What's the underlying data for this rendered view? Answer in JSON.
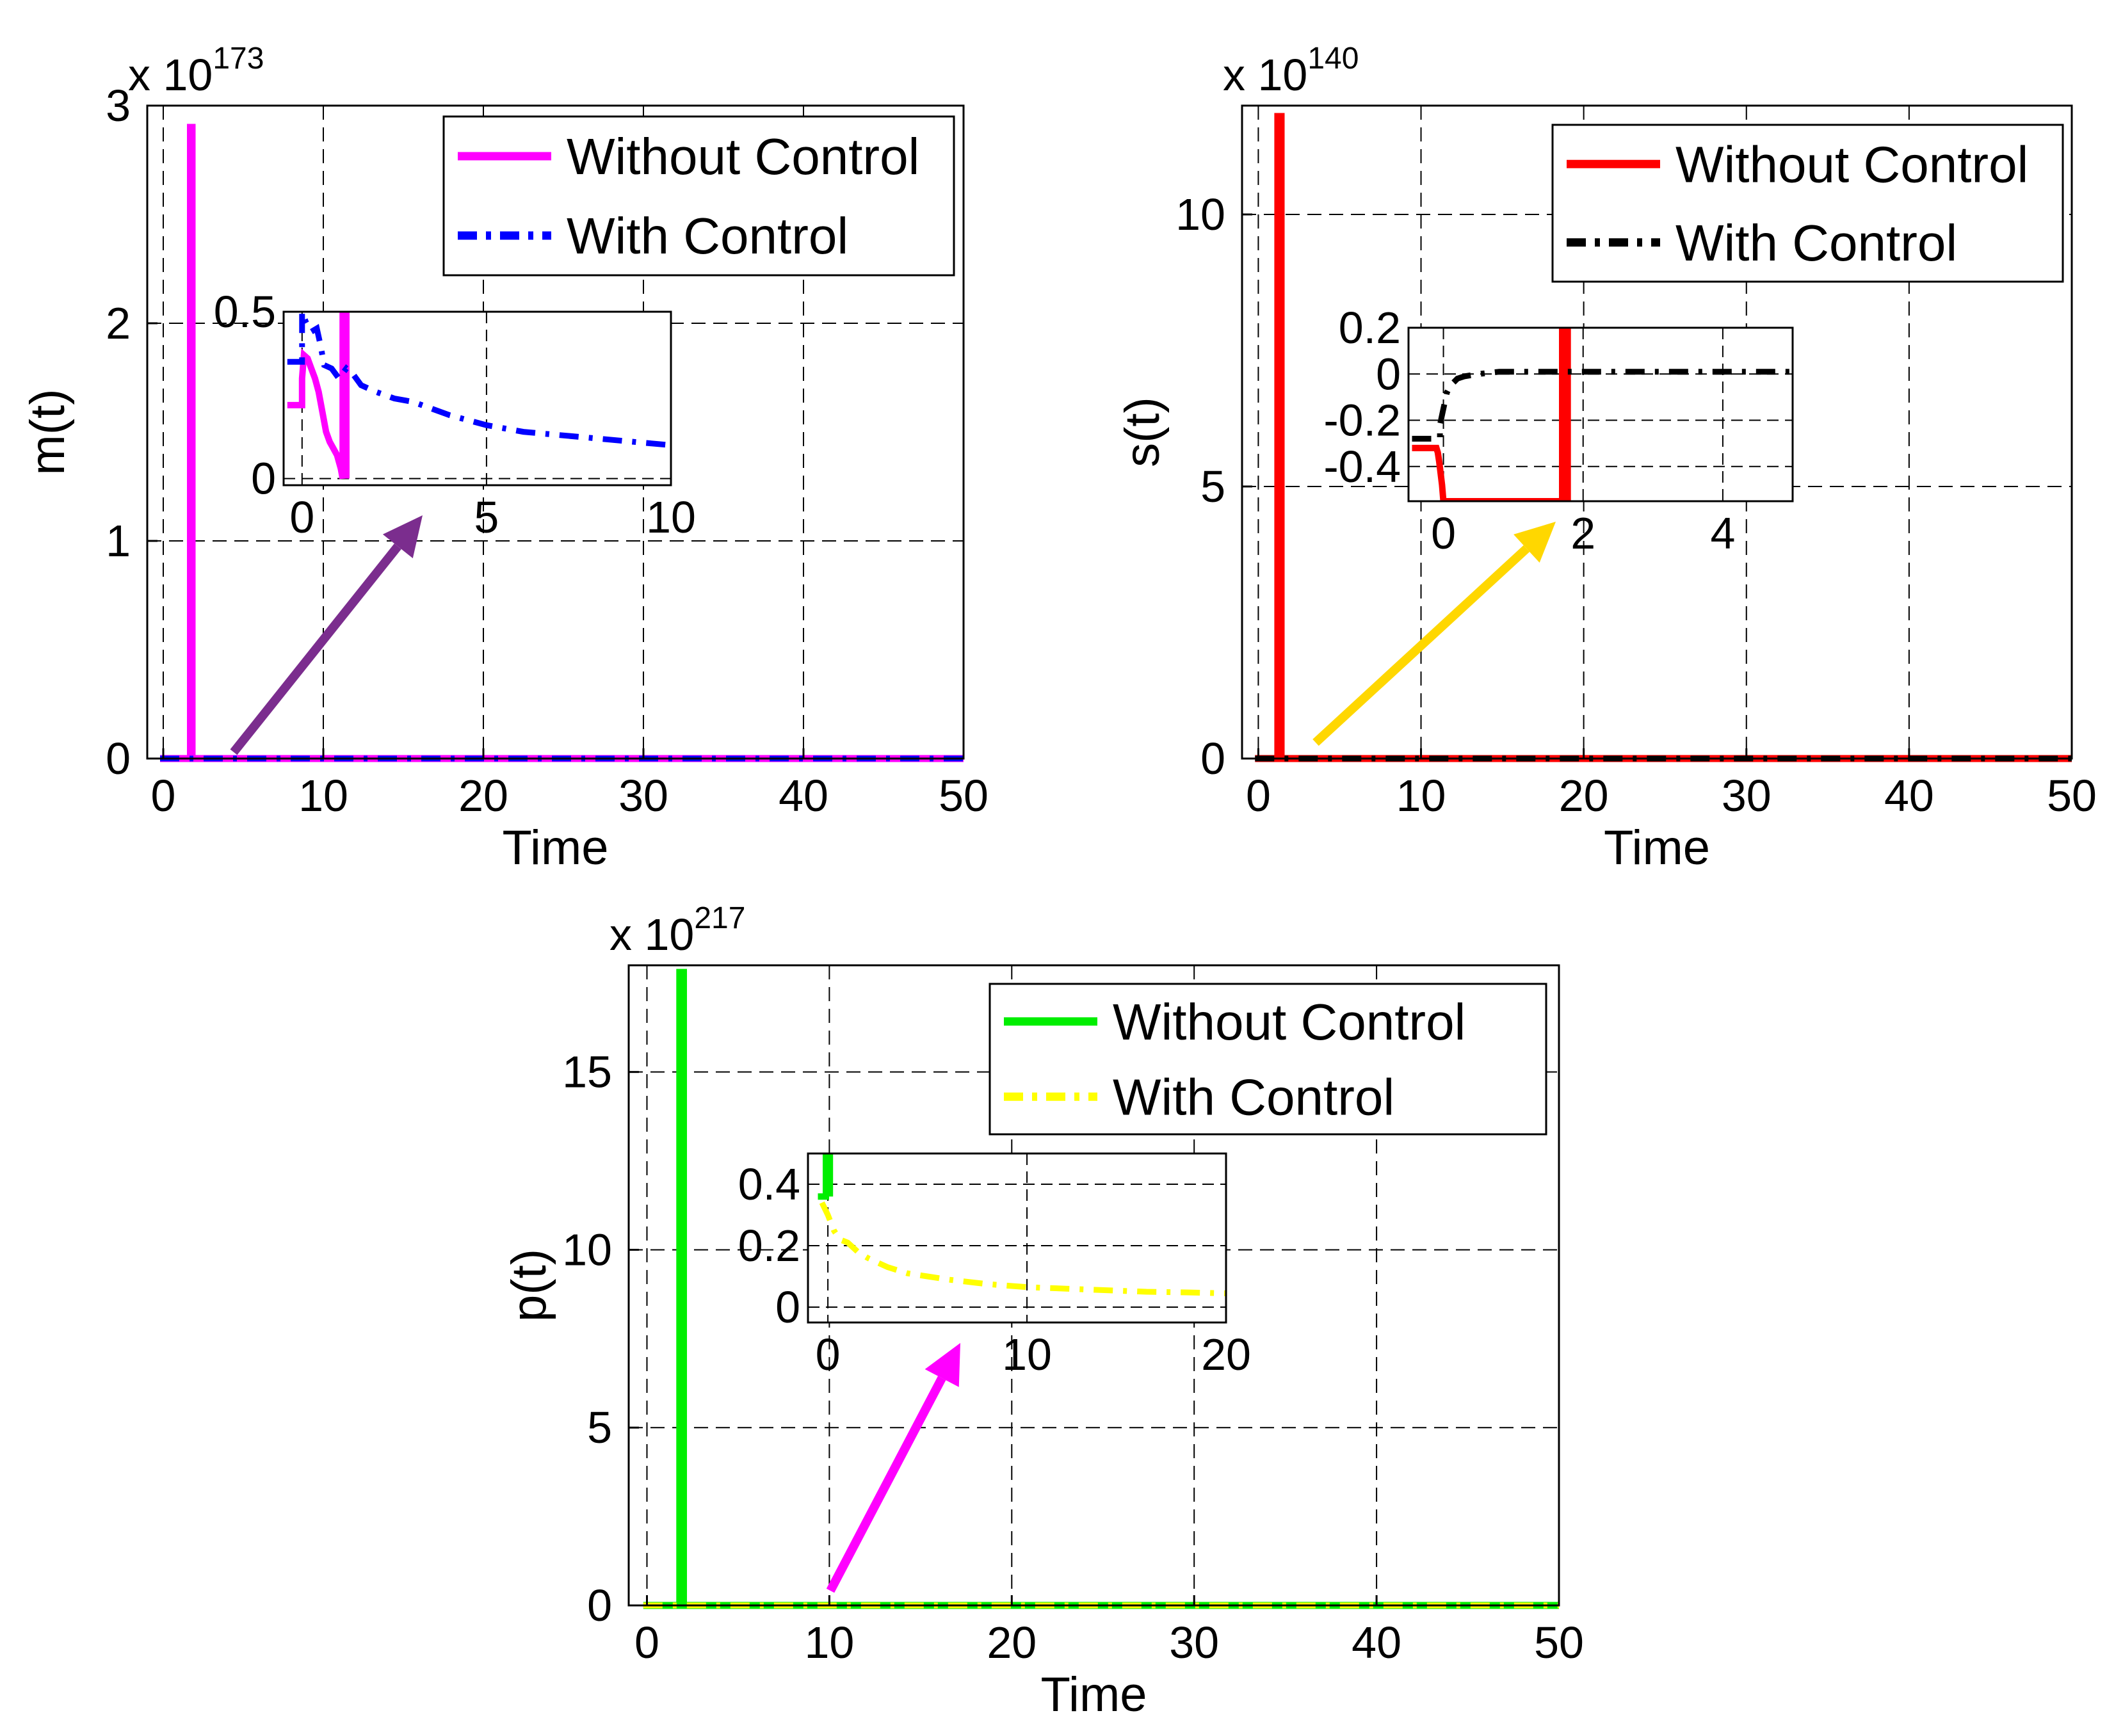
{
  "figure": {
    "description_free": true
  },
  "chart_data": [
    {
      "id": "m",
      "type": "line",
      "ylabel": "m(t)",
      "xlabel": "Time",
      "exponent": "173",
      "exponent_prefix": "x 10",
      "xlim": [
        -1,
        50
      ],
      "ylim": [
        0,
        3
      ],
      "xticks": [
        0,
        10,
        20,
        30,
        40,
        50
      ],
      "yticks": [
        0,
        1,
        2,
        3
      ],
      "grid": true,
      "legend_position": "top-right",
      "series": [
        {
          "name": "Without Control",
          "color": "#ff00ff",
          "style": "solid",
          "x": [
            -0.2,
            1.4,
            1.5,
            1.7,
            1.7,
            1.8,
            1.8,
            50
          ],
          "y": [
            0,
            0,
            0,
            0,
            2.9,
            2.9,
            0,
            0
          ]
        },
        {
          "name": "With Control",
          "color": "#0000ff",
          "style": "dashdot",
          "x": [
            -0.2,
            50
          ],
          "y": [
            0,
            0
          ]
        }
      ],
      "inset": {
        "xlim": [
          -0.5,
          10
        ],
        "ylim": [
          -0.02,
          0.5
        ],
        "xticks": [
          0,
          5,
          10
        ],
        "yticks": [
          0,
          0.5
        ],
        "series": [
          {
            "name": "Without Control",
            "color": "#ff00ff",
            "style": "solid",
            "x": [
              -0.4,
              0,
              0,
              0.05,
              0.15,
              0.25,
              0.35,
              0.45,
              0.55,
              0.65,
              0.75,
              0.85,
              0.95,
              1.05,
              1.1,
              1.1,
              1.2,
              1.2
            ],
            "y": [
              0.22,
              0.22,
              0.3,
              0.37,
              0.36,
              0.33,
              0.3,
              0.26,
              0.2,
              0.14,
              0.11,
              0.09,
              0.07,
              0.03,
              0.0,
              0.5,
              0.5,
              0.0
            ]
          },
          {
            "name": "With Control",
            "color": "#0000ff",
            "style": "dashdot",
            "x": [
              -0.4,
              0,
              0,
              0.1,
              0.25,
              0.4,
              0.5,
              0.6,
              0.8,
              1.0,
              1.2,
              1.4,
              1.6,
              2,
              2.5,
              3,
              3.5,
              4,
              5,
              6,
              7,
              8,
              9,
              10
            ],
            "y": [
              0.35,
              0.35,
              0.5,
              0.47,
              0.44,
              0.45,
              0.4,
              0.34,
              0.33,
              0.3,
              0.33,
              0.31,
              0.28,
              0.26,
              0.24,
              0.23,
              0.21,
              0.19,
              0.16,
              0.14,
              0.13,
              0.12,
              0.11,
              0.1
            ]
          }
        ]
      },
      "arrow_color": "#7b2d8e"
    },
    {
      "id": "s",
      "type": "line",
      "ylabel": "s(t)",
      "xlabel": "Time",
      "exponent": "140",
      "exponent_prefix": "x 10",
      "xlim": [
        -1,
        50
      ],
      "ylim": [
        0,
        12
      ],
      "xticks": [
        0,
        10,
        20,
        30,
        40,
        50
      ],
      "yticks": [
        0,
        5,
        10
      ],
      "grid": true,
      "legend_position": "top-right",
      "series": [
        {
          "name": "Without Control",
          "color": "#ff0000",
          "style": "solid",
          "x": [
            -0.2,
            1.2,
            1.2,
            1.4,
            1.4,
            50
          ],
          "y": [
            0,
            0,
            11.8,
            11.8,
            0,
            0
          ]
        },
        {
          "name": "With Control",
          "color": "#000000",
          "style": "dashdot",
          "x": [
            -0.2,
            50
          ],
          "y": [
            0,
            0
          ]
        }
      ],
      "inset": {
        "xlim": [
          -0.5,
          5
        ],
        "ylim": [
          -0.55,
          0.2
        ],
        "xticks": [
          0,
          2,
          4
        ],
        "yticks": [
          0.2,
          0,
          -0.2,
          -0.4
        ],
        "series": [
          {
            "name": "Without Control",
            "color": "#ff0000",
            "style": "solid",
            "x": [
              -0.45,
              -0.1,
              -0.08,
              -0.06,
              -0.04,
              -0.02,
              0.0,
              1.7,
              1.7,
              1.78,
              1.78
            ],
            "y": [
              -0.32,
              -0.32,
              -0.34,
              -0.38,
              -0.43,
              -0.48,
              -0.55,
              -0.55,
              0.2,
              0.2,
              -0.55
            ]
          },
          {
            "name": "With Control",
            "color": "#000000",
            "style": "dashdot",
            "x": [
              -0.45,
              -0.05,
              -0.05,
              0.0,
              0.05,
              0.1,
              0.2,
              0.3,
              0.5,
              0.8,
              1.2,
              2,
              3,
              4,
              5
            ],
            "y": [
              -0.28,
              -0.28,
              -0.22,
              -0.15,
              -0.08,
              -0.05,
              -0.02,
              -0.01,
              0.0,
              0.01,
              0.01,
              0.01,
              0.01,
              0.01,
              0.01
            ]
          }
        ]
      },
      "arrow_color": "#ffd700"
    },
    {
      "id": "p",
      "type": "line",
      "ylabel": "p(t)",
      "xlabel": "Time",
      "exponent": "217",
      "exponent_prefix": "x 10",
      "xlim": [
        -1,
        50
      ],
      "ylim": [
        0,
        18
      ],
      "xticks": [
        0,
        10,
        20,
        30,
        40,
        50
      ],
      "yticks": [
        0,
        5,
        10,
        15
      ],
      "grid": true,
      "legend_position": "top-right",
      "series": [
        {
          "name": "Without Control",
          "color": "#00ee00",
          "style": "solid",
          "x": [
            -0.2,
            1.8,
            1.8,
            2.0,
            2.0,
            50
          ],
          "y": [
            0,
            0,
            17.8,
            17.8,
            0,
            0
          ]
        },
        {
          "name": "With Control",
          "color": "#ffff00",
          "style": "dashdot",
          "x": [
            -0.2,
            50
          ],
          "y": [
            0,
            0
          ]
        }
      ],
      "inset": {
        "xlim": [
          -1,
          20
        ],
        "ylim": [
          -0.05,
          0.5
        ],
        "xticks": [
          0,
          10,
          20
        ],
        "yticks": [
          0,
          0.2,
          0.4
        ],
        "series": [
          {
            "name": "Without Control",
            "color": "#00ee00",
            "style": "solid",
            "x": [
              -0.5,
              -0.1,
              -0.1,
              0.1,
              0.1
            ],
            "y": [
              0.36,
              0.36,
              0.5,
              0.5,
              0.36
            ]
          },
          {
            "name": "With Control",
            "color": "#ffff00",
            "style": "dashdot",
            "x": [
              -0.3,
              0,
              0.3,
              0.6,
              1,
              1.5,
              2,
              3,
              4,
              5,
              6,
              8,
              10,
              12,
              14,
              16,
              18,
              20
            ],
            "y": [
              0.34,
              0.3,
              0.25,
              0.22,
              0.21,
              0.18,
              0.16,
              0.13,
              0.11,
              0.1,
              0.09,
              0.075,
              0.065,
              0.06,
              0.055,
              0.05,
              0.048,
              0.045
            ]
          }
        ]
      },
      "arrow_color": "#ff00ff"
    }
  ]
}
